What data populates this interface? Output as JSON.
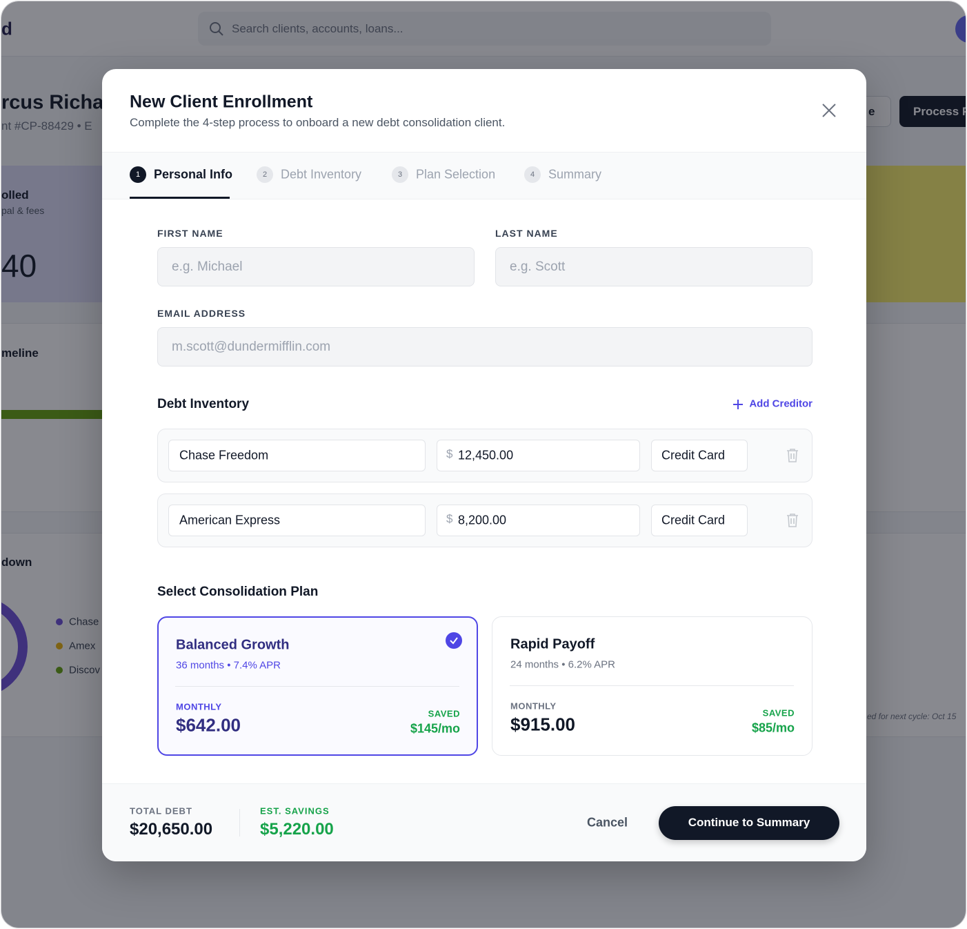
{
  "background": {
    "logo": "d",
    "search_placeholder": "Search clients, accounts, loans...",
    "client_name": "rcus Richa",
    "client_meta": "nt #CP-88429 • E",
    "secondary_button": "e",
    "primary_button": "Process P",
    "card_title": "olled",
    "card_subtitle": "pal & fees",
    "card_value": "40",
    "timeline_title": "meline",
    "breakdown_title": "down",
    "legend": [
      "Chase",
      "Amex",
      "Discov"
    ],
    "footnote": "ed for next cycle: Oct 15"
  },
  "modal": {
    "title": "New Client Enrollment",
    "subtitle": "Complete the 4-step process to onboard a new debt consolidation client.",
    "steps": [
      {
        "number": "1",
        "label": "Personal Info",
        "active": true
      },
      {
        "number": "2",
        "label": "Debt Inventory",
        "active": false
      },
      {
        "number": "3",
        "label": "Plan Selection",
        "active": false
      },
      {
        "number": "4",
        "label": "Summary",
        "active": false
      }
    ],
    "form": {
      "first_name": {
        "label": "FIRST NAME",
        "placeholder": "e.g. Michael"
      },
      "last_name": {
        "label": "LAST NAME",
        "placeholder": "e.g. Scott"
      },
      "email": {
        "label": "EMAIL ADDRESS",
        "placeholder": "m.scott@dundermifflin.com"
      }
    },
    "debt_inventory": {
      "title": "Debt Inventory",
      "add_button": "Add Creditor",
      "rows": [
        {
          "creditor": "Chase Freedom",
          "currency": "$",
          "amount": "12,450.00",
          "type": "Credit Card"
        },
        {
          "creditor": "American Express",
          "currency": "$",
          "amount": "8,200.00",
          "type": "Credit Card"
        }
      ]
    },
    "plans": {
      "title": "Select Consolidation Plan",
      "options": [
        {
          "name": "Balanced Growth",
          "detail": "36 months • 7.4% APR",
          "monthly_label": "MONTHLY",
          "monthly": "$642.00",
          "saved_label": "SAVED",
          "saved": "$145/mo",
          "selected": true
        },
        {
          "name": "Rapid Payoff",
          "detail": "24 months • 6.2% APR",
          "monthly_label": "MONTHLY",
          "monthly": "$915.00",
          "saved_label": "SAVED",
          "saved": "$85/mo",
          "selected": false
        }
      ]
    },
    "footer": {
      "total_label": "TOTAL DEBT",
      "total": "$20,650.00",
      "savings_label": "EST. SAVINGS",
      "savings": "$5,220.00",
      "cancel": "Cancel",
      "continue": "Continue to Summary"
    }
  }
}
